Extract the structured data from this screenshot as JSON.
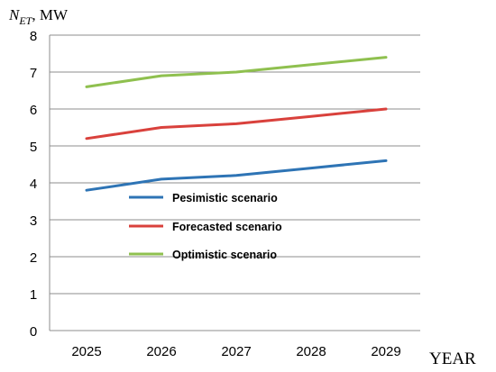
{
  "chart_data": {
    "type": "line",
    "ylabel_main": "N",
    "ylabel_sub": "ET",
    "ylabel_unit": ", MW",
    "xlabel": "YEAR",
    "categories": [
      "2025",
      "2026",
      "2027",
      "2028",
      "2029"
    ],
    "ylim": [
      0,
      8
    ],
    "yticks": [
      0,
      1,
      2,
      3,
      4,
      5,
      6,
      7,
      8
    ],
    "grid": "horizontal",
    "legend_position": "center-left",
    "series": [
      {
        "name": "Pesimistic scenario",
        "color": "#2e74b5",
        "values": [
          3.8,
          4.1,
          4.2,
          4.4,
          4.6
        ]
      },
      {
        "name": "Forecasted scenario",
        "color": "#d9413c",
        "values": [
          5.2,
          5.5,
          5.6,
          5.8,
          6.0
        ]
      },
      {
        "name": "Optimistic scenario",
        "color": "#8fc04f",
        "values": [
          6.6,
          6.9,
          7.0,
          7.2,
          7.4
        ]
      }
    ]
  }
}
